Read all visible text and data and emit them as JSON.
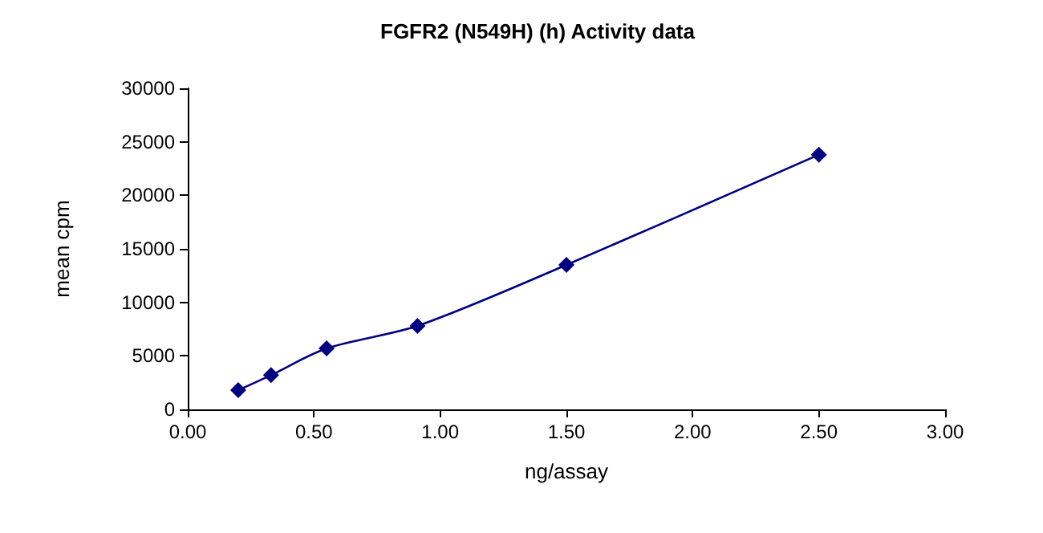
{
  "chart_data": {
    "type": "line",
    "title": "FGFR2 (N549H) (h) Activity data",
    "xlabel": "ng/assay",
    "ylabel": "mean cpm",
    "x": [
      0.2,
      0.33,
      0.55,
      0.91,
      1.5,
      2.5
    ],
    "series": [
      {
        "color": "#000080",
        "values": [
          1800,
          3200,
          5700,
          7800,
          13500,
          23800
        ]
      }
    ],
    "xlim": [
      0,
      3
    ],
    "xticks": [
      {
        "value": 0,
        "label": "0.00"
      },
      {
        "value": 0.5,
        "label": "0.50"
      },
      {
        "value": 1,
        "label": "1.00"
      },
      {
        "value": 1.5,
        "label": "1.50"
      },
      {
        "value": 2,
        "label": "2.00"
      },
      {
        "value": 2.5,
        "label": "2.50"
      },
      {
        "value": 3,
        "label": "3.00"
      }
    ],
    "ylim": [
      0,
      30000
    ],
    "yticks": [
      0,
      5000,
      10000,
      15000,
      20000,
      25000,
      30000
    ],
    "grid": false,
    "marker": "diamond",
    "line_style": "solid"
  }
}
